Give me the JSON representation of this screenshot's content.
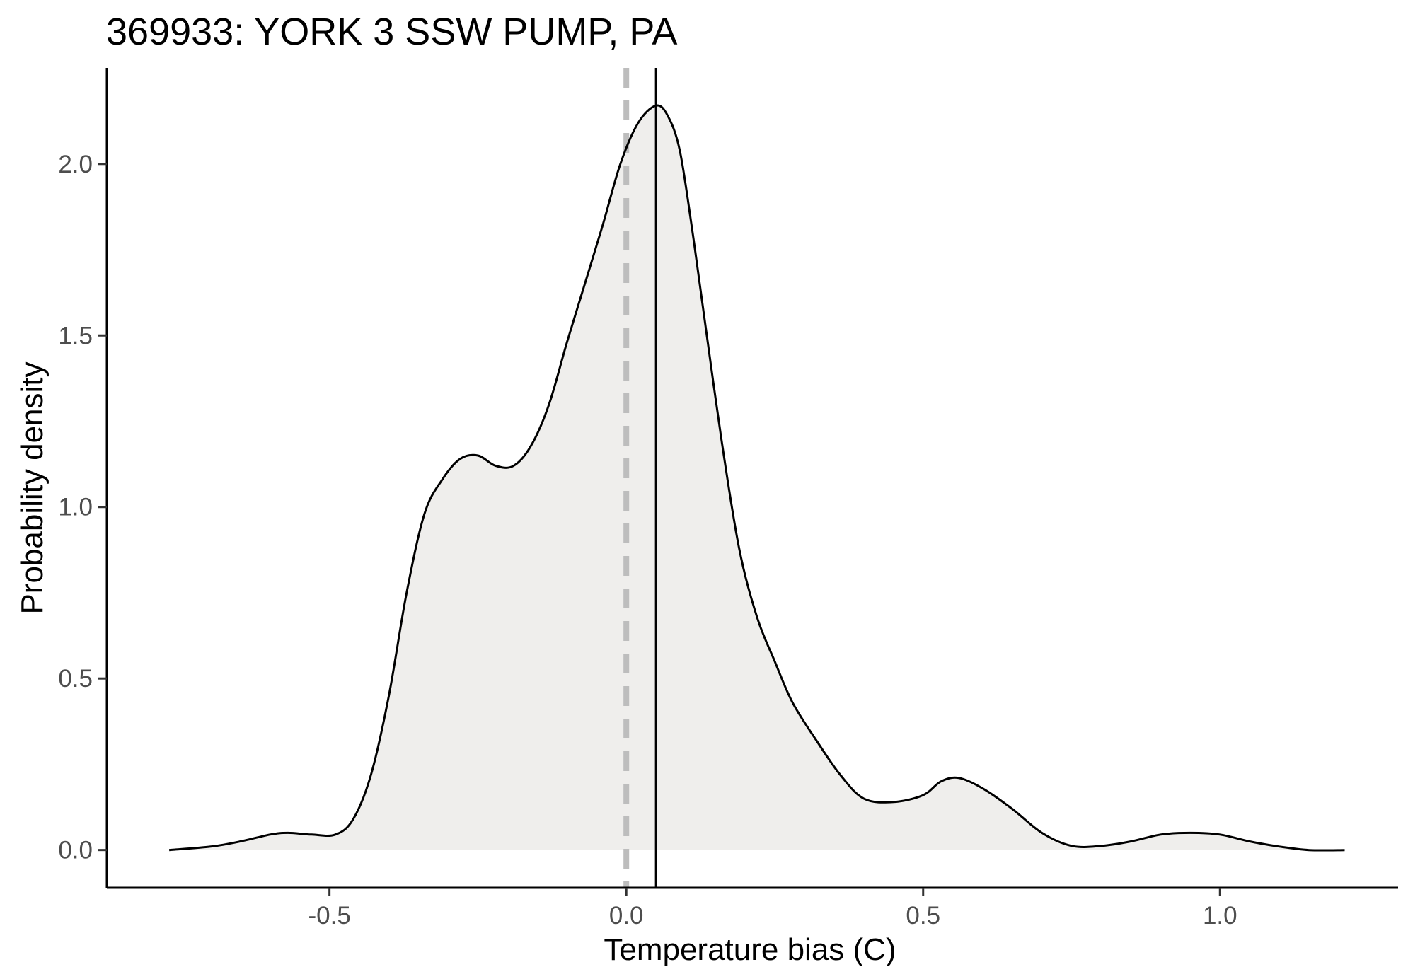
{
  "chart_data": {
    "type": "area",
    "title": "369933: YORK 3 SSW PUMP, PA",
    "xlabel": "Temperature bias (C)",
    "ylabel": "Probability density",
    "xlim": [
      -0.875,
      1.3
    ],
    "ylim": [
      -0.11,
      2.28
    ],
    "x_ticks": [
      -0.5,
      0.0,
      0.5,
      1.0
    ],
    "x_tick_labels": [
      "-0.5",
      "0.0",
      "0.5",
      "1.0"
    ],
    "y_ticks": [
      0.0,
      0.5,
      1.0,
      1.5,
      2.0
    ],
    "y_tick_labels": [
      "0.0",
      "0.5",
      "1.0",
      "1.5",
      "2.0"
    ],
    "grid": false,
    "fill_color": "#efeeec",
    "line_color": "#000000",
    "reference_lines": [
      {
        "x": 0.0,
        "style": "dashed",
        "color": "#bdbdbd"
      },
      {
        "x": 0.05,
        "style": "solid",
        "color": "#000000"
      }
    ],
    "series": [
      {
        "x": [
          -0.77,
          -0.7,
          -0.65,
          -0.6,
          -0.57,
          -0.53,
          -0.49,
          -0.46,
          -0.43,
          -0.4,
          -0.37,
          -0.34,
          -0.31,
          -0.28,
          -0.25,
          -0.22,
          -0.19,
          -0.16,
          -0.13,
          -0.1,
          -0.07,
          -0.04,
          -0.01,
          0.02,
          0.05,
          0.07,
          0.09,
          0.11,
          0.13,
          0.16,
          0.19,
          0.22,
          0.25,
          0.28,
          0.32,
          0.36,
          0.4,
          0.45,
          0.5,
          0.53,
          0.56,
          0.6,
          0.65,
          0.7,
          0.75,
          0.8,
          0.85,
          0.9,
          0.95,
          1.0,
          1.05,
          1.1,
          1.15,
          1.21
        ],
        "y": [
          0.0,
          0.01,
          0.025,
          0.045,
          0.05,
          0.045,
          0.045,
          0.09,
          0.22,
          0.45,
          0.75,
          0.98,
          1.08,
          1.14,
          1.15,
          1.12,
          1.12,
          1.18,
          1.3,
          1.48,
          1.65,
          1.82,
          2.0,
          2.12,
          2.17,
          2.14,
          2.04,
          1.82,
          1.57,
          1.2,
          0.88,
          0.68,
          0.55,
          0.43,
          0.32,
          0.22,
          0.15,
          0.14,
          0.16,
          0.2,
          0.21,
          0.18,
          0.12,
          0.05,
          0.012,
          0.012,
          0.025,
          0.045,
          0.05,
          0.045,
          0.025,
          0.01,
          0.0,
          0.0
        ]
      }
    ]
  }
}
